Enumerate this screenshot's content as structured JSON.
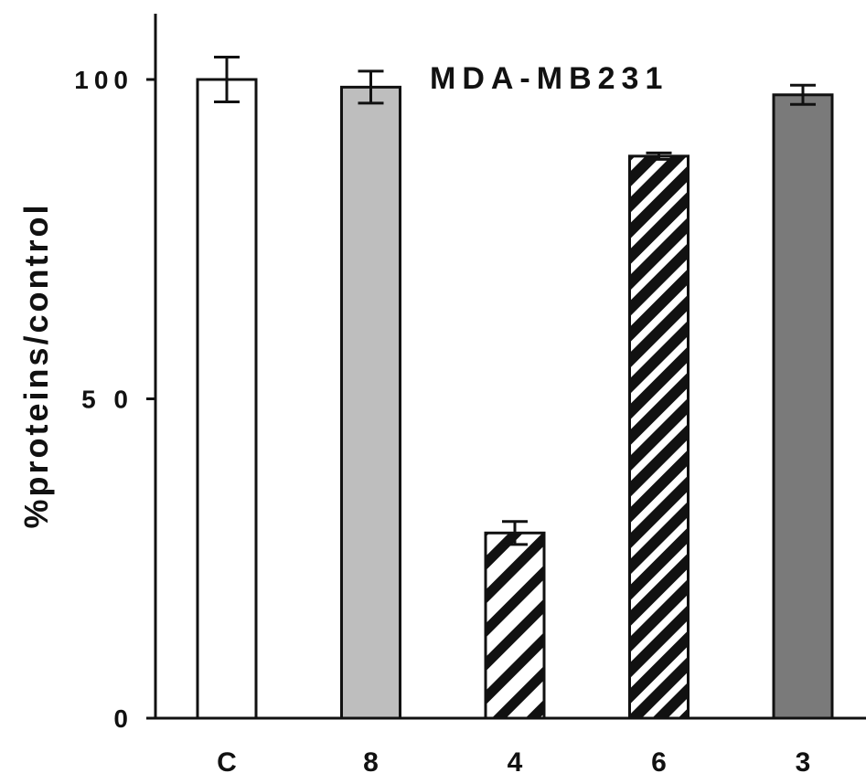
{
  "chart_data": {
    "type": "bar",
    "title": "MDA-MB231",
    "ylabel": "%proteins/control",
    "xlabel": "",
    "ylim": [
      0,
      110
    ],
    "yticks": [
      {
        "value": 0,
        "label": "0"
      },
      {
        "value": 50,
        "label": "5 0"
      },
      {
        "value": 100,
        "label": "100"
      }
    ],
    "categories": [
      "C",
      "8",
      "4",
      "6",
      "3"
    ],
    "values": [
      100,
      98.8,
      29,
      88,
      97.6
    ],
    "errors": [
      3.5,
      2.5,
      1.8,
      0.5,
      1.5
    ],
    "fills": [
      {
        "pattern": "solid",
        "color": "#ffffff"
      },
      {
        "pattern": "solid",
        "color": "#bebebe"
      },
      {
        "pattern": "diagonal-sparse",
        "color": "#111111"
      },
      {
        "pattern": "diagonal-dense",
        "color": "#111111"
      },
      {
        "pattern": "solid",
        "color": "#7a7a7a"
      }
    ],
    "grid": false,
    "legend": "none"
  }
}
